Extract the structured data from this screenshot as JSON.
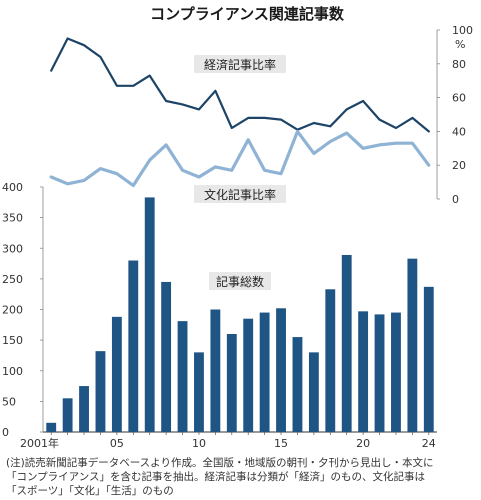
{
  "chart_data": {
    "type": "bar+line",
    "title": "コンプライアンス関連記事数",
    "x_start": 2001,
    "x_end": 2024,
    "x_tick_labels": [
      "2001年",
      "05",
      "10",
      "15",
      "20",
      "24"
    ],
    "left_axis": {
      "ylim": [
        0,
        400
      ],
      "ticks": [
        "0",
        "50",
        "100",
        "150",
        "200",
        "250",
        "300",
        "350",
        "400"
      ]
    },
    "right_axis": {
      "ylim": [
        0,
        100
      ],
      "ticks": [
        "0",
        "20",
        "40",
        "60",
        "80",
        "100"
      ],
      "unit": "%"
    },
    "bars": {
      "name": "記事総数",
      "values": [
        15,
        55,
        75,
        132,
        188,
        280,
        383,
        245,
        181,
        130,
        200,
        160,
        185,
        195,
        202,
        155,
        130,
        233,
        289,
        197,
        192,
        195,
        283,
        237
      ]
    },
    "lines": [
      {
        "name": "経済記事比率",
        "color": "#1d4466",
        "values": [
          76,
          95,
          91,
          84,
          67,
          67,
          73,
          58,
          56,
          53,
          64,
          42,
          48,
          48,
          47,
          41,
          45,
          43,
          53,
          58,
          47,
          42,
          48,
          40
        ]
      },
      {
        "name": "文化記事比率",
        "color": "#8fb3d4",
        "values": [
          13,
          9,
          11,
          18,
          15,
          8,
          23,
          32,
          17,
          13,
          19,
          17,
          35,
          17,
          15,
          40,
          27,
          34,
          39,
          30,
          32,
          33,
          33,
          20
        ]
      }
    ]
  },
  "note": {
    "line1": "(注)読売新聞記事データベースより作成。全国版・地域版の朝刊・夕刊から見出し・本文に",
    "line2": "「コンプライアンス」を含む記事を抽出。経済記事は分類が「経済」のもの、文化記事は",
    "line3": "「スポーツ」「文化」「生活」のもの"
  },
  "colors": {
    "bar": "#1f5584",
    "line_dark": "#1d4466",
    "line_light": "#8fb3d4",
    "label_box": "#e8e8e8"
  }
}
